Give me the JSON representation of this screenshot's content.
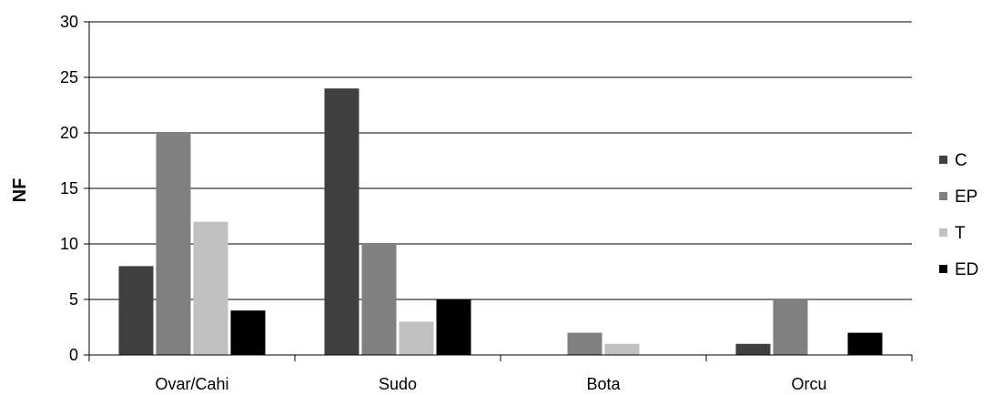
{
  "chart_data": {
    "type": "bar",
    "title": "",
    "xlabel": "",
    "ylabel": "NF",
    "ylim": [
      0,
      30
    ],
    "yticks": [
      0,
      5,
      10,
      15,
      20,
      25,
      30
    ],
    "grid": "horizontal",
    "legend_position": "right",
    "categories": [
      "Ovar/Cahi",
      "Sudo",
      "Bota",
      "Orcu"
    ],
    "series": [
      {
        "name": "C",
        "color": "#404040",
        "values": [
          8,
          24,
          0,
          1
        ]
      },
      {
        "name": "EP",
        "color": "#808080",
        "values": [
          20,
          10,
          2,
          5
        ]
      },
      {
        "name": "T",
        "color": "#c0c0c0",
        "values": [
          12,
          3,
          1,
          0
        ]
      },
      {
        "name": "ED",
        "color": "#000000",
        "values": [
          4,
          5,
          0,
          2
        ]
      }
    ]
  }
}
